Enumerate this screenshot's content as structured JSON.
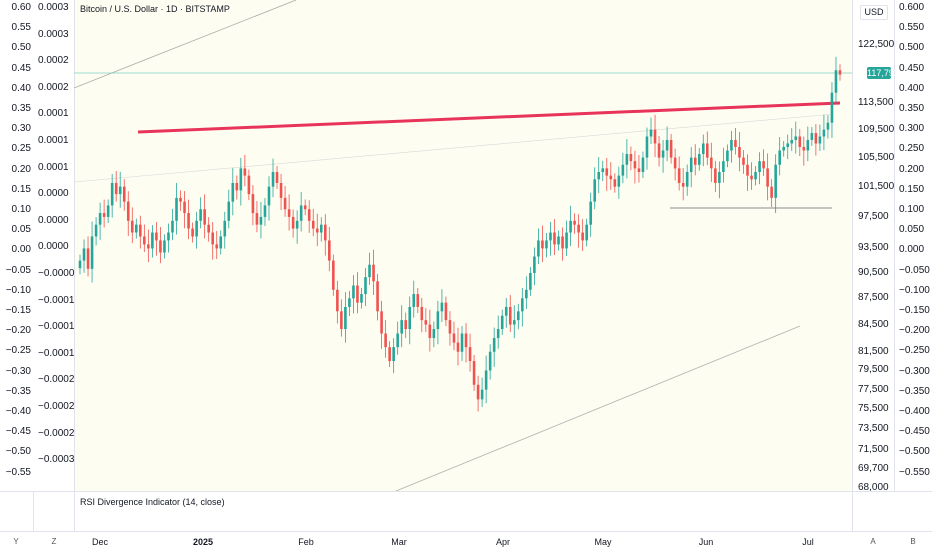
{
  "chart_data": {
    "type": "candlestick",
    "title": "Bitcoin / U.S. Dollar · 1D · BITSTAMP",
    "currency": "USD",
    "last_price_label": "117,792",
    "last_price": 117792,
    "indicator_label": "RSI Divergence Indicator (14, close)",
    "right_ticks": [
      "122,500",
      "113,500",
      "109,500",
      "105,500",
      "101,500",
      "97,500",
      "93,500",
      "90,500",
      "87,500",
      "84,500",
      "81,500",
      "79,500",
      "77,500",
      "75,500",
      "73,500",
      "71,500",
      "69,700",
      "68,000"
    ],
    "right_ticks_values": [
      122500,
      113500,
      109500,
      105500,
      101500,
      97500,
      93500,
      90500,
      87500,
      84500,
      81500,
      79500,
      77500,
      75500,
      73500,
      71500,
      69700,
      68000
    ],
    "ratio_ticks_left": [
      "0.60",
      "0.55",
      "0.50",
      "0.45",
      "0.40",
      "0.35",
      "0.30",
      "0.25",
      "0.20",
      "0.15",
      "0.10",
      "0.05",
      "0.00",
      "−0.05",
      "−0.10",
      "−0.15",
      "−0.20",
      "−0.25",
      "−0.30",
      "−0.35",
      "−0.40",
      "−0.45",
      "−0.50",
      "−0.55"
    ],
    "ratio_ticks_right": [
      "0.600",
      "0.550",
      "0.500",
      "0.450",
      "0.400",
      "0.350",
      "0.300",
      "0.250",
      "0.200",
      "0.150",
      "0.100",
      "0.050",
      "0.000",
      "−0.050",
      "−0.100",
      "−0.150",
      "−0.200",
      "−0.250",
      "−0.300",
      "−0.350",
      "−0.400",
      "−0.450",
      "−0.500",
      "−0.550"
    ],
    "small_ticks": [
      "0.0003",
      "0.0003",
      "0.0002",
      "0.0002",
      "0.0001",
      "0.0001",
      "0.0001",
      "0.0000",
      "0.0000",
      "0.0000",
      "−0.0000",
      "−0.0001",
      "−0.0001",
      "−0.0001",
      "−0.0002",
      "−0.0002",
      "−0.0002",
      "−0.0003"
    ],
    "x_labels": [
      {
        "text": "Dec",
        "bold": false
      },
      {
        "text": "2025",
        "bold": true
      },
      {
        "text": "Feb",
        "bold": false
      },
      {
        "text": "Mar",
        "bold": false
      },
      {
        "text": "Apr",
        "bold": false
      },
      {
        "text": "May",
        "bold": false
      },
      {
        "text": "Jun",
        "bold": false
      },
      {
        "text": "Jul",
        "bold": false
      }
    ],
    "closes": [
      92000,
      93500,
      91000,
      95000,
      96500,
      98000,
      97500,
      99000,
      102000,
      100500,
      101500,
      99500,
      97000,
      95500,
      96500,
      95000,
      94000,
      93500,
      95500,
      94500,
      93000,
      94500,
      95500,
      97000,
      100000,
      99500,
      98000,
      96000,
      95000,
      97000,
      98500,
      96500,
      95500,
      94000,
      93500,
      95000,
      97000,
      99500,
      102000,
      101000,
      104000,
      103000,
      100500,
      98000,
      96500,
      97500,
      99000,
      101500,
      103500,
      102000,
      100000,
      98500,
      97500,
      96000,
      97000,
      99000,
      98500,
      97000,
      96000,
      95500,
      96500,
      94500,
      92000,
      88500,
      86000,
      84000,
      86500,
      87500,
      89000,
      87000,
      88000,
      90000,
      91500,
      89500,
      86000,
      83500,
      82000,
      80500,
      82000,
      83500,
      85000,
      84000,
      86500,
      88000,
      86500,
      85000,
      84500,
      83000,
      84000,
      86000,
      87000,
      85000,
      83500,
      82500,
      81500,
      83500,
      82000,
      80500,
      78000,
      76500,
      77500,
      79500,
      81500,
      83000,
      84000,
      85500,
      86500,
      84500,
      85000,
      86000,
      87500,
      88500,
      90500,
      92500,
      94500,
      93500,
      94500,
      95500,
      94000,
      95000,
      93500,
      95500,
      97000,
      96500,
      95500,
      94500,
      96500,
      99500,
      102500,
      103500,
      104000,
      103000,
      102500,
      101500,
      103000,
      104500,
      106000,
      105000,
      104000,
      103500,
      105500,
      108500,
      109500,
      107500,
      105500,
      106500,
      108000,
      105500,
      104000,
      102000,
      101500,
      103500,
      105500,
      104500,
      106000,
      107500,
      105500,
      104000,
      102000,
      103500,
      105000,
      106500,
      108000,
      107000,
      105500,
      104500,
      103000,
      102500,
      103500,
      105000,
      104000,
      101500,
      100000,
      104500,
      106500,
      107000,
      107500,
      108000,
      108500,
      107000,
      106500,
      108000,
      109000,
      107500,
      108500,
      109500,
      110500,
      115000,
      118500,
      117800
    ]
  }
}
